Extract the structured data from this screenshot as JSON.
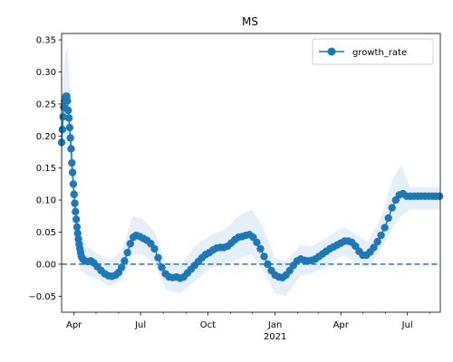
{
  "chart_data": {
    "type": "line",
    "title": "MS",
    "xlabel": "",
    "ylabel": "",
    "x_range": [
      "2020-03-15",
      "2021-08-15"
    ],
    "ylim": [
      -0.075,
      0.36
    ],
    "y_ticks": [
      -0.05,
      0.0,
      0.05,
      0.1,
      0.15,
      0.2,
      0.25,
      0.3,
      0.35
    ],
    "y_tick_labels": [
      "−0.05",
      "0.00",
      "0.05",
      "0.10",
      "0.15",
      "0.20",
      "0.25",
      "0.30",
      "0.35"
    ],
    "x_ticks": [
      {
        "date": "2020-04-01",
        "label": "Apr",
        "sublabel": ""
      },
      {
        "date": "2020-07-01",
        "label": "Jul",
        "sublabel": ""
      },
      {
        "date": "2020-10-01",
        "label": "Oct",
        "sublabel": ""
      },
      {
        "date": "2021-01-01",
        "label": "Jan",
        "sublabel": "2021"
      },
      {
        "date": "2021-04-01",
        "label": "Apr",
        "sublabel": ""
      },
      {
        "date": "2021-07-01",
        "label": "Jul",
        "sublabel": ""
      }
    ],
    "minor_ticks": [
      "2020-05-01",
      "2020-06-01",
      "2020-08-01",
      "2020-09-01",
      "2020-11-01",
      "2020-12-01",
      "2021-02-01",
      "2021-03-01",
      "2021-05-01",
      "2021-06-01",
      "2021-08-01"
    ],
    "reference_line": {
      "y": 0.0,
      "style": "dashed",
      "color": "#1f77b4"
    },
    "legend": {
      "position": "top-right",
      "entries": [
        "growth_rate"
      ]
    },
    "grid": false,
    "colors": {
      "line": "#1f77b4",
      "band": "#dce9f7"
    },
    "series": [
      {
        "name": "growth_rate",
        "points": [
          [
            "2020-03-15",
            0.19
          ],
          [
            "2020-03-16",
            0.21
          ],
          [
            "2020-03-17",
            0.23
          ],
          [
            "2020-03-18",
            0.245
          ],
          [
            "2020-03-19",
            0.255
          ],
          [
            "2020-03-20",
            0.26
          ],
          [
            "2020-03-21",
            0.262
          ],
          [
            "2020-03-22",
            0.262
          ],
          [
            "2020-03-23",
            0.255
          ],
          [
            "2020-03-24",
            0.24
          ],
          [
            "2020-03-25",
            0.228
          ],
          [
            "2020-03-26",
            0.213
          ],
          [
            "2020-03-27",
            0.197
          ],
          [
            "2020-03-28",
            0.18
          ],
          [
            "2020-03-29",
            0.158
          ],
          [
            "2020-03-30",
            0.143
          ],
          [
            "2020-03-31",
            0.125
          ],
          [
            "2020-04-01",
            0.109
          ],
          [
            "2020-04-02",
            0.095
          ],
          [
            "2020-04-03",
            0.082
          ],
          [
            "2020-04-04",
            0.07
          ],
          [
            "2020-04-05",
            0.058
          ],
          [
            "2020-04-06",
            0.048
          ],
          [
            "2020-04-07",
            0.039
          ],
          [
            "2020-04-08",
            0.031
          ],
          [
            "2020-04-09",
            0.024
          ],
          [
            "2020-04-10",
            0.018
          ],
          [
            "2020-04-11",
            0.012
          ],
          [
            "2020-04-13",
            0.008
          ],
          [
            "2020-04-16",
            0.005
          ],
          [
            "2020-04-20",
            0.004
          ],
          [
            "2020-04-24",
            0.005
          ],
          [
            "2020-04-28",
            0.002
          ],
          [
            "2020-05-03",
            -0.004
          ],
          [
            "2020-05-08",
            -0.01
          ],
          [
            "2020-05-13",
            -0.015
          ],
          [
            "2020-05-18",
            -0.018
          ],
          [
            "2020-05-23",
            -0.019
          ],
          [
            "2020-05-28",
            -0.017
          ],
          [
            "2020-06-01",
            -0.013
          ],
          [
            "2020-06-05",
            -0.005
          ],
          [
            "2020-06-09",
            0.005
          ],
          [
            "2020-06-13",
            0.018
          ],
          [
            "2020-06-17",
            0.032
          ],
          [
            "2020-06-21",
            0.042
          ],
          [
            "2020-06-25",
            0.045
          ],
          [
            "2020-06-30",
            0.043
          ],
          [
            "2020-07-05",
            0.04
          ],
          [
            "2020-07-10",
            0.037
          ],
          [
            "2020-07-15",
            0.032
          ],
          [
            "2020-07-20",
            0.024
          ],
          [
            "2020-07-25",
            0.01
          ],
          [
            "2020-07-30",
            -0.005
          ],
          [
            "2020-08-04",
            -0.015
          ],
          [
            "2020-08-09",
            -0.02
          ],
          [
            "2020-08-14",
            -0.021
          ],
          [
            "2020-08-19",
            -0.02
          ],
          [
            "2020-08-24",
            -0.022
          ],
          [
            "2020-08-29",
            -0.02
          ],
          [
            "2020-09-03",
            -0.014
          ],
          [
            "2020-09-08",
            -0.008
          ],
          [
            "2020-09-13",
            -0.002
          ],
          [
            "2020-09-18",
            0.004
          ],
          [
            "2020-09-23",
            0.01
          ],
          [
            "2020-09-28",
            0.015
          ],
          [
            "2020-10-03",
            0.018
          ],
          [
            "2020-10-08",
            0.022
          ],
          [
            "2020-10-13",
            0.025
          ],
          [
            "2020-10-18",
            0.026
          ],
          [
            "2020-10-23",
            0.026
          ],
          [
            "2020-10-28",
            0.028
          ],
          [
            "2020-11-02",
            0.033
          ],
          [
            "2020-11-07",
            0.038
          ],
          [
            "2020-11-12",
            0.042
          ],
          [
            "2020-11-17",
            0.043
          ],
          [
            "2020-11-22",
            0.045
          ],
          [
            "2020-11-27",
            0.046
          ],
          [
            "2020-12-02",
            0.042
          ],
          [
            "2020-12-07",
            0.034
          ],
          [
            "2020-12-12",
            0.024
          ],
          [
            "2020-12-17",
            0.012
          ],
          [
            "2020-12-22",
            0.0
          ],
          [
            "2020-12-27",
            -0.01
          ],
          [
            "2021-01-01",
            -0.017
          ],
          [
            "2021-01-06",
            -0.02
          ],
          [
            "2021-01-11",
            -0.021
          ],
          [
            "2021-01-16",
            -0.017
          ],
          [
            "2021-01-21",
            -0.01
          ],
          [
            "2021-01-26",
            -0.002
          ],
          [
            "2021-01-31",
            0.005
          ],
          [
            "2021-02-05",
            0.008
          ],
          [
            "2021-02-10",
            0.006
          ],
          [
            "2021-02-15",
            0.005
          ],
          [
            "2021-02-20",
            0.006
          ],
          [
            "2021-02-25",
            0.008
          ],
          [
            "2021-03-02",
            0.012
          ],
          [
            "2021-03-07",
            0.016
          ],
          [
            "2021-03-12",
            0.02
          ],
          [
            "2021-03-17",
            0.024
          ],
          [
            "2021-03-22",
            0.027
          ],
          [
            "2021-03-27",
            0.03
          ],
          [
            "2021-04-01",
            0.033
          ],
          [
            "2021-04-06",
            0.036
          ],
          [
            "2021-04-11",
            0.036
          ],
          [
            "2021-04-16",
            0.034
          ],
          [
            "2021-04-21",
            0.028
          ],
          [
            "2021-04-26",
            0.02
          ],
          [
            "2021-05-01",
            0.014
          ],
          [
            "2021-05-06",
            0.014
          ],
          [
            "2021-05-11",
            0.019
          ],
          [
            "2021-05-16",
            0.026
          ],
          [
            "2021-05-21",
            0.035
          ],
          [
            "2021-05-26",
            0.045
          ],
          [
            "2021-05-31",
            0.057
          ],
          [
            "2021-06-05",
            0.072
          ],
          [
            "2021-06-10",
            0.088
          ],
          [
            "2021-06-15",
            0.1
          ],
          [
            "2021-06-20",
            0.108
          ],
          [
            "2021-06-25",
            0.11
          ],
          [
            "2021-06-30",
            0.106
          ],
          [
            "2021-07-05",
            0.106
          ],
          [
            "2021-07-10",
            0.106
          ],
          [
            "2021-07-15",
            0.106
          ],
          [
            "2021-07-20",
            0.106
          ],
          [
            "2021-07-25",
            0.106
          ],
          [
            "2021-07-30",
            0.106
          ],
          [
            "2021-08-04",
            0.106
          ],
          [
            "2021-08-09",
            0.106
          ],
          [
            "2021-08-14",
            0.106
          ]
        ],
        "band": [
          [
            "2020-03-15",
            0.14,
            0.25
          ],
          [
            "2020-03-20",
            0.18,
            0.33
          ],
          [
            "2020-03-23",
            0.19,
            0.34
          ],
          [
            "2020-03-27",
            0.14,
            0.27
          ],
          [
            "2020-04-01",
            0.07,
            0.16
          ],
          [
            "2020-04-05",
            0.025,
            0.1
          ],
          [
            "2020-04-10",
            -0.01,
            0.045
          ],
          [
            "2020-04-20",
            -0.018,
            0.027
          ],
          [
            "2020-05-01",
            -0.022,
            0.018
          ],
          [
            "2020-05-20",
            -0.035,
            0.008
          ],
          [
            "2020-06-05",
            -0.025,
            0.02
          ],
          [
            "2020-06-20",
            0.015,
            0.075
          ],
          [
            "2020-07-05",
            0.015,
            0.07
          ],
          [
            "2020-07-20",
            0.0,
            0.05
          ],
          [
            "2020-08-05",
            -0.04,
            0.005
          ],
          [
            "2020-08-25",
            -0.045,
            0.0
          ],
          [
            "2020-09-15",
            -0.025,
            0.03
          ],
          [
            "2020-10-05",
            -0.005,
            0.045
          ],
          [
            "2020-10-25",
            0.0,
            0.055
          ],
          [
            "2020-11-15",
            0.01,
            0.078
          ],
          [
            "2020-11-30",
            0.015,
            0.085
          ],
          [
            "2020-12-15",
            -0.01,
            0.06
          ],
          [
            "2021-01-01",
            -0.045,
            0.01
          ],
          [
            "2021-01-15",
            -0.05,
            0.005
          ],
          [
            "2021-02-05",
            -0.018,
            0.03
          ],
          [
            "2021-02-20",
            -0.015,
            0.028
          ],
          [
            "2021-03-10",
            -0.005,
            0.04
          ],
          [
            "2021-04-05",
            0.015,
            0.058
          ],
          [
            "2021-04-25",
            0.0,
            0.045
          ],
          [
            "2021-05-08",
            -0.005,
            0.035
          ],
          [
            "2021-05-25",
            0.02,
            0.07
          ],
          [
            "2021-06-10",
            0.055,
            0.13
          ],
          [
            "2021-06-22",
            0.075,
            0.155
          ],
          [
            "2021-07-05",
            0.085,
            0.12
          ],
          [
            "2021-08-14",
            0.085,
            0.12
          ]
        ]
      }
    ]
  }
}
